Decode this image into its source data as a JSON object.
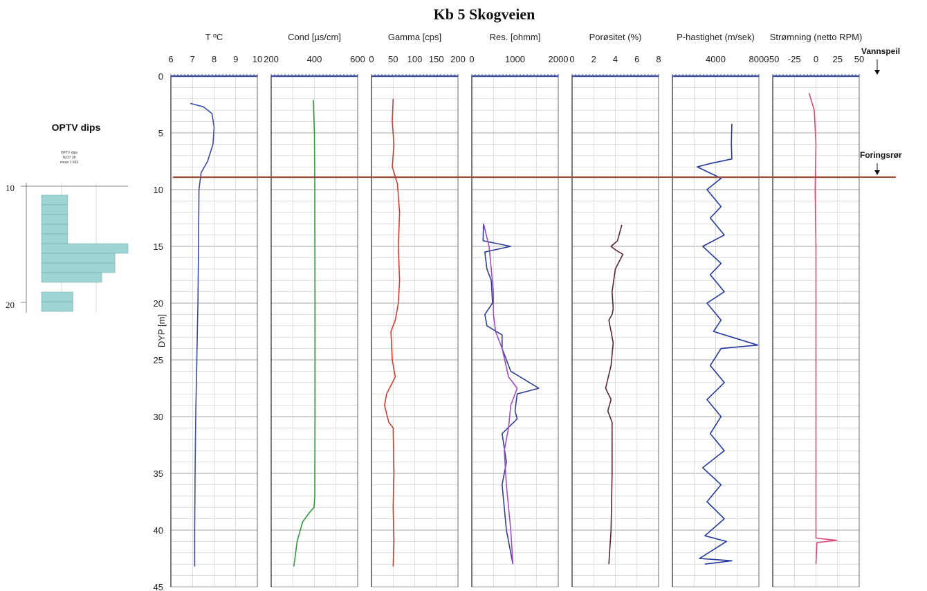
{
  "title": "Kb 5   Skogveien",
  "y_axis_label": "DYP  [m]",
  "annotations": {
    "water_level": {
      "label": "Vannspeil",
      "depth": 0
    },
    "casing": {
      "label": "Foringsrør",
      "depth": 8.9
    }
  },
  "inset": {
    "title": "OPTV dips",
    "small_title": "OPTV dips",
    "small_sub1": "N237 28",
    "small_sub2": "mean 1.663",
    "tick_labels": [
      "10",
      "20"
    ]
  },
  "colors": {
    "axis": "#3a4f9e",
    "casing_line": "#a04a3a",
    "temperature": "#3b4aa8",
    "conductivity": "#2e9a3c",
    "gamma": "#d63a2e",
    "res_a": "#2f3f96",
    "res_b": "#a04cc4",
    "porosity": "#5a2538",
    "p_velocity": "#24379c",
    "flow": "#e0457a",
    "inset_bar": "#9fd4d4"
  },
  "chart_data": {
    "type": "line",
    "title": "Kb 5   Skogveien",
    "ylabel": "DYP  [m]",
    "ylim": [
      0,
      45
    ],
    "y_ticks": [
      0,
      5,
      10,
      15,
      20,
      25,
      30,
      35,
      40,
      45
    ],
    "grid": true,
    "panels": [
      {
        "label": "T ºC",
        "xlim": [
          6,
          10
        ],
        "x_ticks": [
          "6",
          "7",
          "8",
          "9",
          "10"
        ],
        "series": [
          {
            "name": "",
            "points": [
              [
                6.9,
                2.4
              ],
              [
                7.5,
                2.7
              ],
              [
                7.9,
                3.3
              ],
              [
                8.0,
                4.5
              ],
              [
                7.95,
                6.0
              ],
              [
                7.7,
                7.5
              ],
              [
                7.4,
                8.5
              ],
              [
                7.3,
                10
              ],
              [
                7.28,
                15
              ],
              [
                7.25,
                20
              ],
              [
                7.2,
                25
              ],
              [
                7.15,
                30
              ],
              [
                7.12,
                35
              ],
              [
                7.1,
                40
              ],
              [
                7.1,
                43.2
              ]
            ]
          }
        ]
      },
      {
        "label": "Cond [µs/cm]",
        "xlim": [
          200,
          600
        ],
        "x_ticks": [
          "200",
          "400",
          "600"
        ],
        "series": [
          {
            "name": "",
            "points": [
              [
                395,
                2.1
              ],
              [
                400,
                5
              ],
              [
                402,
                10
              ],
              [
                403,
                20
              ],
              [
                403,
                30
              ],
              [
                402,
                37
              ],
              [
                398,
                38
              ],
              [
                375,
                38.5
              ],
              [
                345,
                39.3
              ],
              [
                320,
                41
              ],
              [
                305,
                43.2
              ]
            ]
          }
        ]
      },
      {
        "label": "Gamma [cps]",
        "xlim": [
          0,
          200
        ],
        "x_ticks": [
          "0",
          "50",
          "100",
          "150",
          "200"
        ],
        "series": [
          {
            "name": "",
            "points": [
              [
                50,
                2
              ],
              [
                48,
                4
              ],
              [
                52,
                6
              ],
              [
                48,
                8
              ],
              [
                60,
                9.5
              ],
              [
                65,
                12
              ],
              [
                62,
                15
              ],
              [
                65,
                18
              ],
              [
                62,
                20
              ],
              [
                55,
                21.5
              ],
              [
                45,
                22.5
              ],
              [
                48,
                25
              ],
              [
                55,
                26.5
              ],
              [
                35,
                28
              ],
              [
                30,
                29
              ],
              [
                40,
                30.5
              ],
              [
                50,
                31
              ],
              [
                52,
                35
              ],
              [
                50,
                38
              ],
              [
                52,
                41
              ],
              [
                50,
                43.2
              ]
            ]
          }
        ]
      },
      {
        "label": "Res. [ohmm]",
        "xlim": [
          0,
          2000
        ],
        "x_ticks": [
          "0",
          "1000",
          "2000"
        ],
        "series": [
          {
            "name": "",
            "points": [
              [
                270,
                13
              ],
              [
                260,
                14.5
              ],
              [
                900,
                15
              ],
              [
                300,
                15.5
              ],
              [
                350,
                17
              ],
              [
                450,
                18
              ],
              [
                480,
                20
              ],
              [
                300,
                21
              ],
              [
                350,
                22
              ],
              [
                700,
                22.8
              ],
              [
                700,
                24
              ],
              [
                900,
                26
              ],
              [
                1550,
                27.5
              ],
              [
                1050,
                28
              ],
              [
                1000,
                29.5
              ],
              [
                1050,
                30.2
              ],
              [
                700,
                31.5
              ],
              [
                800,
                34
              ],
              [
                700,
                36
              ],
              [
                800,
                40
              ],
              [
                950,
                43
              ]
            ]
          },
          {
            "name": "",
            "points": [
              [
                270,
                13
              ],
              [
                400,
                15
              ],
              [
                450,
                17
              ],
              [
                500,
                19
              ],
              [
                500,
                21
              ],
              [
                550,
                22.5
              ],
              [
                700,
                24
              ],
              [
                850,
                26.5
              ],
              [
                1050,
                27.5
              ],
              [
                900,
                29
              ],
              [
                850,
                31
              ],
              [
                750,
                33
              ],
              [
                800,
                36
              ],
              [
                900,
                40
              ],
              [
                950,
                43
              ]
            ]
          }
        ]
      },
      {
        "label": "Porøsitet  (%)",
        "xlim": [
          0,
          8
        ],
        "x_ticks": [
          "0",
          "2",
          "4",
          "6",
          "8"
        ],
        "series": [
          {
            "name": "",
            "points": [
              [
                4.6,
                13.1
              ],
              [
                4.2,
                14.5
              ],
              [
                3.6,
                15
              ],
              [
                4.0,
                15.3
              ],
              [
                4.7,
                15.7
              ],
              [
                4.0,
                17
              ],
              [
                3.7,
                19
              ],
              [
                3.8,
                20.5
              ],
              [
                3.7,
                21
              ],
              [
                3.4,
                21.5
              ],
              [
                3.6,
                22.5
              ],
              [
                3.8,
                23.5
              ],
              [
                3.6,
                25.5
              ],
              [
                3.1,
                27.5
              ],
              [
                3.6,
                28.5
              ],
              [
                3.3,
                29.5
              ],
              [
                3.7,
                30.5
              ],
              [
                3.7,
                35
              ],
              [
                3.6,
                40
              ],
              [
                3.4,
                43
              ]
            ]
          }
        ]
      },
      {
        "label": "P-hastighet (m/sek)",
        "xlim": [
          0,
          8000
        ],
        "x_ticks": [
          "4000",
          "8000"
        ],
        "series": [
          {
            "name": "",
            "points": [
              [
                5500,
                4.2
              ],
              [
                5450,
                6
              ],
              [
                5500,
                7.3
              ],
              [
                3500,
                7.7
              ],
              [
                2300,
                8
              ],
              [
                4500,
                9
              ],
              [
                3200,
                10
              ],
              [
                4500,
                11.5
              ],
              [
                3500,
                12.5
              ],
              [
                4800,
                14
              ],
              [
                2800,
                15
              ],
              [
                4500,
                16.5
              ],
              [
                3500,
                17.5
              ],
              [
                4800,
                19
              ],
              [
                3200,
                20
              ],
              [
                4500,
                21.5
              ],
              [
                3800,
                22.5
              ],
              [
                5500,
                23
              ],
              [
                7900,
                23.7
              ],
              [
                4500,
                24
              ],
              [
                3500,
                25.5
              ],
              [
                4800,
                27
              ],
              [
                3200,
                28.5
              ],
              [
                4500,
                30
              ],
              [
                3500,
                31.5
              ],
              [
                4800,
                33
              ],
              [
                2800,
                34.5
              ],
              [
                4500,
                36
              ],
              [
                3200,
                37.5
              ],
              [
                4800,
                39
              ],
              [
                3000,
                40.5
              ],
              [
                5000,
                41
              ],
              [
                2500,
                42.5
              ],
              [
                5500,
                42.7
              ],
              [
                3000,
                43
              ]
            ]
          }
        ]
      },
      {
        "label": "Strømning (netto RPM)",
        "xlim": [
          -50,
          50
        ],
        "x_ticks": [
          "-50",
          "-25",
          "0",
          "25",
          "50"
        ],
        "series": [
          {
            "name": "",
            "points": [
              [
                -8,
                1.5
              ],
              [
                -2,
                3
              ],
              [
                0,
                6
              ],
              [
                -1,
                10
              ],
              [
                0,
                15
              ],
              [
                0,
                20
              ],
              [
                0,
                25
              ],
              [
                0,
                30
              ],
              [
                0,
                35
              ],
              [
                0,
                40
              ],
              [
                0,
                40.7
              ],
              [
                24,
                40.9
              ],
              [
                1,
                41.1
              ],
              [
                0,
                43
              ]
            ]
          }
        ]
      }
    ],
    "inset_histogram": {
      "title": "OPTV dips",
      "ylim": [
        10,
        20
      ],
      "values": [
        1.0,
        1.0,
        1.0,
        1.0,
        1.0,
        3.3,
        2.8,
        2.8,
        2.3,
        0,
        1.2,
        1.2
      ]
    }
  }
}
